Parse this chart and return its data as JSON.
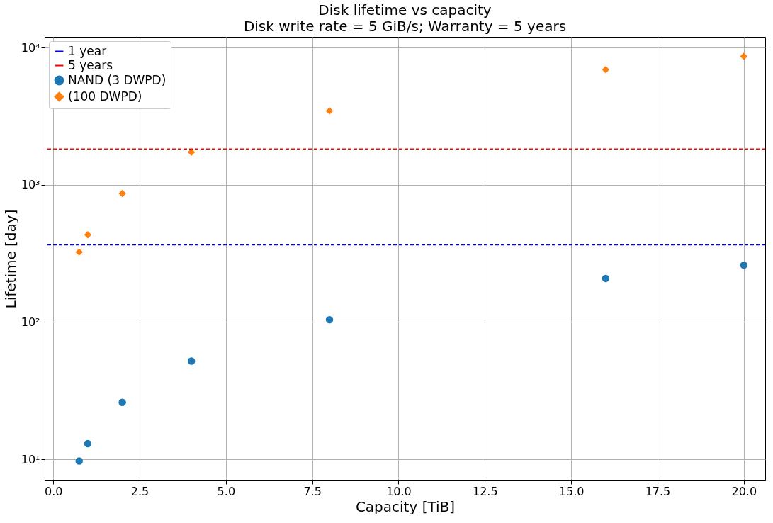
{
  "chart_data": {
    "type": "scatter",
    "title": "Disk lifetime vs capacity",
    "subtitle": "Disk write rate = 5 GiB/s; Warranty = 5 years",
    "xlabel": "Capacity [TiB]",
    "ylabel": "Lifetime [day]",
    "series": [
      {
        "name": "NAND (3 DWPD)",
        "color": "#1f77b4",
        "marker": "circle",
        "x": [
          0.75,
          1,
          2,
          4,
          8,
          16,
          20
        ],
        "values": [
          9.7,
          13,
          26,
          52,
          104,
          208,
          260
        ]
      },
      {
        "name": "(100 DWPD)",
        "color": "#ff7f0e",
        "marker": "diamond",
        "x": [
          0.75,
          1,
          2,
          4,
          8,
          16,
          20
        ],
        "values": [
          324,
          433,
          865,
          1730,
          3460,
          6920,
          8650
        ]
      }
    ],
    "ref_lines": [
      {
        "axis": "y",
        "value": 365,
        "label": "1 year",
        "color": "#0000ff",
        "line_style": "dashed"
      },
      {
        "axis": "y",
        "value": 1825,
        "label": "5 years",
        "color": "#ff0000",
        "line_style": "dashed"
      }
    ],
    "log": "y",
    "xlim": [
      -0.25,
      20.62
    ],
    "xticks": [
      {
        "value": 0,
        "label": "0.0"
      },
      2.5,
      {
        "value": 5,
        "label": "5.0"
      },
      7.5,
      {
        "value": 10,
        "label": "10.0"
      },
      12.5,
      {
        "value": 15,
        "label": "15.0"
      },
      17.5,
      {
        "value": 20,
        "label": "20.0"
      }
    ],
    "ylim": [
      7,
      12000
    ],
    "yticks": [
      {
        "value": 10,
        "label": "10¹"
      },
      {
        "value": 100,
        "label": "10²"
      },
      {
        "value": 1000,
        "label": "10³"
      },
      {
        "value": 10000,
        "label": "10⁴"
      }
    ],
    "grid": true,
    "legend": "top left"
  }
}
